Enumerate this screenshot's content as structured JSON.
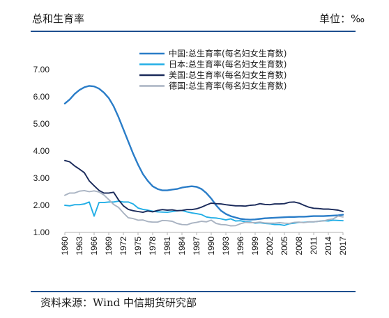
{
  "header": {
    "title": "总和生育率",
    "unit": "单位：‰"
  },
  "footer": {
    "source": "资料来源：Wind 中信期货研究部"
  },
  "colors": {
    "rule": "#1e4f8f",
    "series": [
      "#2a7dc8",
      "#22aee6",
      "#1a2a5a",
      "#a9b3c2"
    ]
  },
  "chart_data": {
    "type": "line",
    "grid": false,
    "legend_position": "top-right",
    "xlim": [
      1960,
      2017
    ],
    "ylim": [
      1.0,
      7.0
    ],
    "x_ticks": [
      "1960",
      "1963",
      "1966",
      "1969",
      "1972",
      "1975",
      "1978",
      "1981",
      "1984",
      "1987",
      "1990",
      "1993",
      "1996",
      "1999",
      "2002",
      "2005",
      "2008",
      "2011",
      "2014",
      "2017"
    ],
    "y_ticks": [
      "1.00",
      "2.00",
      "3.00",
      "4.00",
      "5.00",
      "6.00",
      "7.00"
    ],
    "series": [
      {
        "name": "中国:总生育率(每名妇女生育数)",
        "points": [
          [
            1960,
            5.75
          ],
          [
            1961,
            5.9
          ],
          [
            1962,
            6.1
          ],
          [
            1963,
            6.25
          ],
          [
            1964,
            6.35
          ],
          [
            1965,
            6.4
          ],
          [
            1966,
            6.38
          ],
          [
            1967,
            6.3
          ],
          [
            1968,
            6.15
          ],
          [
            1969,
            5.95
          ],
          [
            1970,
            5.65
          ],
          [
            1971,
            5.25
          ],
          [
            1972,
            4.8
          ],
          [
            1973,
            4.35
          ],
          [
            1974,
            3.9
          ],
          [
            1975,
            3.5
          ],
          [
            1976,
            3.15
          ],
          [
            1977,
            2.9
          ],
          [
            1978,
            2.7
          ],
          [
            1979,
            2.6
          ],
          [
            1980,
            2.55
          ],
          [
            1981,
            2.55
          ],
          [
            1982,
            2.58
          ],
          [
            1983,
            2.6
          ],
          [
            1984,
            2.65
          ],
          [
            1985,
            2.68
          ],
          [
            1986,
            2.7
          ],
          [
            1987,
            2.68
          ],
          [
            1988,
            2.6
          ],
          [
            1989,
            2.45
          ],
          [
            1990,
            2.25
          ],
          [
            1991,
            2.0
          ],
          [
            1992,
            1.8
          ],
          [
            1993,
            1.68
          ],
          [
            1994,
            1.6
          ],
          [
            1995,
            1.55
          ],
          [
            1996,
            1.5
          ],
          [
            1997,
            1.48
          ],
          [
            1998,
            1.47
          ],
          [
            1999,
            1.48
          ],
          [
            2000,
            1.5
          ],
          [
            2001,
            1.52
          ],
          [
            2002,
            1.53
          ],
          [
            2003,
            1.54
          ],
          [
            2004,
            1.55
          ],
          [
            2005,
            1.56
          ],
          [
            2006,
            1.57
          ],
          [
            2007,
            1.57
          ],
          [
            2008,
            1.58
          ],
          [
            2009,
            1.58
          ],
          [
            2010,
            1.59
          ],
          [
            2011,
            1.6
          ],
          [
            2012,
            1.6
          ],
          [
            2013,
            1.6
          ],
          [
            2014,
            1.61
          ],
          [
            2015,
            1.62
          ],
          [
            2016,
            1.63
          ],
          [
            2017,
            1.65
          ]
        ]
      },
      {
        "name": "日本:总生育率(每名妇女生育数)",
        "points": [
          [
            1960,
            2.0
          ],
          [
            1961,
            1.98
          ],
          [
            1962,
            2.02
          ],
          [
            1963,
            2.02
          ],
          [
            1964,
            2.05
          ],
          [
            1965,
            2.12
          ],
          [
            1966,
            1.6
          ],
          [
            1967,
            2.1
          ],
          [
            1968,
            2.1
          ],
          [
            1969,
            2.12
          ],
          [
            1970,
            2.12
          ],
          [
            1971,
            2.15
          ],
          [
            1972,
            2.12
          ],
          [
            1973,
            2.12
          ],
          [
            1974,
            2.05
          ],
          [
            1975,
            1.9
          ],
          [
            1976,
            1.85
          ],
          [
            1977,
            1.82
          ],
          [
            1978,
            1.78
          ],
          [
            1979,
            1.76
          ],
          [
            1980,
            1.75
          ],
          [
            1981,
            1.74
          ],
          [
            1982,
            1.77
          ],
          [
            1983,
            1.8
          ],
          [
            1984,
            1.81
          ],
          [
            1985,
            1.76
          ],
          [
            1986,
            1.72
          ],
          [
            1987,
            1.69
          ],
          [
            1988,
            1.66
          ],
          [
            1989,
            1.57
          ],
          [
            1990,
            1.54
          ],
          [
            1991,
            1.53
          ],
          [
            1992,
            1.5
          ],
          [
            1993,
            1.46
          ],
          [
            1994,
            1.5
          ],
          [
            1995,
            1.42
          ],
          [
            1996,
            1.43
          ],
          [
            1997,
            1.39
          ],
          [
            1998,
            1.38
          ],
          [
            1999,
            1.34
          ],
          [
            2000,
            1.36
          ],
          [
            2001,
            1.33
          ],
          [
            2002,
            1.32
          ],
          [
            2003,
            1.29
          ],
          [
            2004,
            1.29
          ],
          [
            2005,
            1.26
          ],
          [
            2006,
            1.32
          ],
          [
            2007,
            1.34
          ],
          [
            2008,
            1.37
          ],
          [
            2009,
            1.37
          ],
          [
            2010,
            1.39
          ],
          [
            2011,
            1.39
          ],
          [
            2012,
            1.41
          ],
          [
            2013,
            1.43
          ],
          [
            2014,
            1.42
          ],
          [
            2015,
            1.45
          ],
          [
            2016,
            1.44
          ],
          [
            2017,
            1.43
          ]
        ]
      },
      {
        "name": "美国:总生育率(每名妇女生育数)",
        "points": [
          [
            1960,
            3.65
          ],
          [
            1961,
            3.6
          ],
          [
            1962,
            3.45
          ],
          [
            1963,
            3.33
          ],
          [
            1964,
            3.2
          ],
          [
            1965,
            2.9
          ],
          [
            1966,
            2.72
          ],
          [
            1967,
            2.55
          ],
          [
            1968,
            2.45
          ],
          [
            1969,
            2.45
          ],
          [
            1970,
            2.48
          ],
          [
            1971,
            2.2
          ],
          [
            1972,
            1.98
          ],
          [
            1973,
            1.85
          ],
          [
            1974,
            1.8
          ],
          [
            1975,
            1.77
          ],
          [
            1976,
            1.74
          ],
          [
            1977,
            1.79
          ],
          [
            1978,
            1.76
          ],
          [
            1979,
            1.81
          ],
          [
            1980,
            1.84
          ],
          [
            1981,
            1.82
          ],
          [
            1982,
            1.83
          ],
          [
            1983,
            1.8
          ],
          [
            1984,
            1.81
          ],
          [
            1985,
            1.84
          ],
          [
            1986,
            1.84
          ],
          [
            1987,
            1.87
          ],
          [
            1988,
            1.93
          ],
          [
            1989,
            2.01
          ],
          [
            1990,
            2.08
          ],
          [
            1991,
            2.06
          ],
          [
            1992,
            2.05
          ],
          [
            1993,
            2.02
          ],
          [
            1994,
            2.0
          ],
          [
            1995,
            1.98
          ],
          [
            1996,
            1.98
          ],
          [
            1997,
            1.97
          ],
          [
            1998,
            2.0
          ],
          [
            1999,
            2.01
          ],
          [
            2000,
            2.06
          ],
          [
            2001,
            2.03
          ],
          [
            2002,
            2.02
          ],
          [
            2003,
            2.05
          ],
          [
            2004,
            2.05
          ],
          [
            2005,
            2.06
          ],
          [
            2006,
            2.11
          ],
          [
            2007,
            2.12
          ],
          [
            2008,
            2.08
          ],
          [
            2009,
            2.0
          ],
          [
            2010,
            1.93
          ],
          [
            2011,
            1.89
          ],
          [
            2012,
            1.88
          ],
          [
            2013,
            1.86
          ],
          [
            2014,
            1.86
          ],
          [
            2015,
            1.84
          ],
          [
            2016,
            1.82
          ],
          [
            2017,
            1.77
          ]
        ]
      },
      {
        "name": "德国:总生育率(每名妇女生育数)",
        "points": [
          [
            1960,
            2.37
          ],
          [
            1961,
            2.45
          ],
          [
            1962,
            2.45
          ],
          [
            1963,
            2.52
          ],
          [
            1964,
            2.54
          ],
          [
            1965,
            2.5
          ],
          [
            1966,
            2.53
          ],
          [
            1967,
            2.49
          ],
          [
            1968,
            2.38
          ],
          [
            1969,
            2.21
          ],
          [
            1970,
            2.03
          ],
          [
            1971,
            1.92
          ],
          [
            1972,
            1.72
          ],
          [
            1973,
            1.54
          ],
          [
            1974,
            1.51
          ],
          [
            1975,
            1.45
          ],
          [
            1976,
            1.46
          ],
          [
            1977,
            1.4
          ],
          [
            1978,
            1.38
          ],
          [
            1979,
            1.38
          ],
          [
            1980,
            1.44
          ],
          [
            1981,
            1.43
          ],
          [
            1982,
            1.41
          ],
          [
            1983,
            1.33
          ],
          [
            1984,
            1.29
          ],
          [
            1985,
            1.28
          ],
          [
            1986,
            1.34
          ],
          [
            1987,
            1.37
          ],
          [
            1988,
            1.41
          ],
          [
            1989,
            1.39
          ],
          [
            1990,
            1.45
          ],
          [
            1991,
            1.33
          ],
          [
            1992,
            1.29
          ],
          [
            1993,
            1.28
          ],
          [
            1994,
            1.24
          ],
          [
            1995,
            1.25
          ],
          [
            1996,
            1.32
          ],
          [
            1997,
            1.37
          ],
          [
            1998,
            1.36
          ],
          [
            1999,
            1.36
          ],
          [
            2000,
            1.38
          ],
          [
            2001,
            1.35
          ],
          [
            2002,
            1.34
          ],
          [
            2003,
            1.34
          ],
          [
            2004,
            1.36
          ],
          [
            2005,
            1.34
          ],
          [
            2006,
            1.33
          ],
          [
            2007,
            1.37
          ],
          [
            2008,
            1.38
          ],
          [
            2009,
            1.36
          ],
          [
            2010,
            1.39
          ],
          [
            2011,
            1.39
          ],
          [
            2012,
            1.41
          ],
          [
            2013,
            1.42
          ],
          [
            2014,
            1.47
          ],
          [
            2015,
            1.5
          ],
          [
            2016,
            1.6
          ],
          [
            2017,
            1.57
          ]
        ]
      }
    ]
  }
}
